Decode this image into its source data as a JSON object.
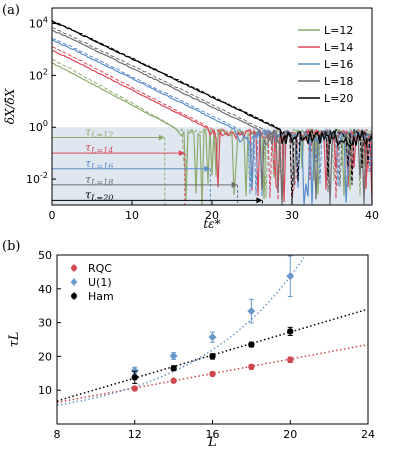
{
  "chart_data": [
    {
      "panel_label": "(a)",
      "type": "line",
      "xlabel": "tε*",
      "ylabel": "δX/δ̄X",
      "xlim": [
        0,
        40
      ],
      "ylim_log10": [
        -3,
        4.6
      ],
      "log_y": true,
      "x_ticks": [
        "0",
        "10",
        "20",
        "30",
        "40"
      ],
      "y_ticks": [
        {
          "mant": "10",
          "exp": "4",
          "log": 4
        },
        {
          "mant": "10",
          "exp": "2",
          "log": 2
        },
        {
          "mant": "10",
          "exp": "0",
          "log": 0
        },
        {
          "mant": "10",
          "exp": "-2",
          "log": -2
        }
      ],
      "legend_position": "top-right",
      "shaded_region": {
        "y_from": 0.001,
        "y_to": 1
      },
      "series": [
        {
          "name": "L=12",
          "color": "#8fac6e",
          "start": 320,
          "decay_rate": 0.38,
          "plateau": 0.85,
          "noise": 0.25,
          "dashed": {
            "start": 460,
            "decay_rate": 0.4
          }
        },
        {
          "name": "L=14",
          "color": "#d9485a",
          "start": 1000,
          "decay_rate": 0.36,
          "plateau": 0.85,
          "noise": 0.35,
          "dashed": {
            "start": 1400,
            "decay_rate": 0.37
          }
        },
        {
          "name": "L=16",
          "color": "#5b8fc9",
          "start": 2500,
          "decay_rate": 0.35,
          "plateau": 0.8,
          "noise": 0.45,
          "dashed": {
            "start": 3000,
            "decay_rate": 0.35
          }
        },
        {
          "name": "L=18",
          "color": "#6e6e6e",
          "start": 6000,
          "decay_rate": 0.345,
          "plateau": 0.8,
          "noise": 0.5,
          "dashed": {
            "start": 7500,
            "decay_rate": 0.345
          }
        },
        {
          "name": "L=20",
          "color": "#000000",
          "start": 13000,
          "decay_rate": 0.34,
          "plateau": 0.8,
          "noise": 0.55,
          "dashed": {
            "start": 14000,
            "decay_rate": 0.34
          }
        }
      ],
      "annotations": [
        {
          "label": "τ",
          "sub": "L=12",
          "x": 14.1,
          "y": 0.4,
          "color": "#8fac6e"
        },
        {
          "label": "τ",
          "sub": "L=14",
          "x": 16.6,
          "y": 0.1,
          "color": "#d9485a"
        },
        {
          "label": "τ",
          "sub": "L=16",
          "x": 19.8,
          "y": 0.025,
          "color": "#5b8fc9"
        },
        {
          "label": "τ",
          "sub": "L=18",
          "x": 23.2,
          "y": 0.006,
          "color": "#6e6e6e"
        },
        {
          "label": "τ",
          "sub": "L=20",
          "x": 26.3,
          "y": 0.0015,
          "color": "#000000"
        }
      ]
    },
    {
      "panel_label": "(b)",
      "type": "scatter",
      "xlabel": "L",
      "ylabel": "τL",
      "xlim": [
        8,
        24
      ],
      "ylim": [
        0,
        50
      ],
      "x_ticks": [
        8,
        12,
        16,
        20,
        24
      ],
      "y_ticks": [
        10,
        20,
        30,
        40,
        50
      ],
      "legend_position": "top-left",
      "series": [
        {
          "name": "RQC",
          "color": "#d0484f",
          "points": [
            {
              "x": 12,
              "y": 10.5,
              "err": 0.6
            },
            {
              "x": 14,
              "y": 12.8,
              "err": 0.5
            },
            {
              "x": 16,
              "y": 14.8,
              "err": 0.6
            },
            {
              "x": 18,
              "y": 16.9,
              "err": 0.7
            },
            {
              "x": 20,
              "y": 19.0,
              "err": 0.8
            }
          ],
          "fit": {
            "kind": "linear",
            "slope": 1.07,
            "intercept": -2.2
          }
        },
        {
          "name": "U(1)",
          "color": "#6a98cb",
          "points": [
            {
              "x": 12,
              "y": 15.8,
              "err": 1.0
            },
            {
              "x": 14,
              "y": 20.1,
              "err": 1.0
            },
            {
              "x": 16,
              "y": 25.7,
              "err": 1.5
            },
            {
              "x": 18,
              "y": 33.4,
              "err": 3.5
            },
            {
              "x": 20,
              "y": 43.7,
              "err": 6.0
            }
          ],
          "fit": {
            "kind": "exp",
            "a": 1.4,
            "b": 0.172
          }
        },
        {
          "name": "Ham",
          "color": "#000000",
          "points": [
            {
              "x": 12,
              "y": 13.8,
              "err": 1.8
            },
            {
              "x": 14,
              "y": 16.5,
              "err": 0.7
            },
            {
              "x": 16,
              "y": 20.0,
              "err": 0.8
            },
            {
              "x": 18,
              "y": 23.5,
              "err": 0.7
            },
            {
              "x": 20,
              "y": 27.4,
              "err": 1.2
            }
          ],
          "fit": {
            "kind": "linear",
            "slope": 1.7,
            "intercept": -6.8
          }
        }
      ]
    }
  ]
}
